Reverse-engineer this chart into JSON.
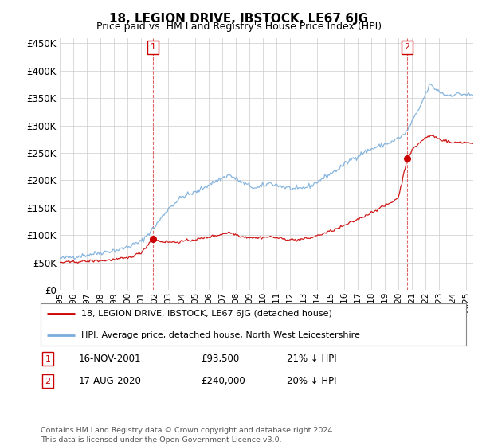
{
  "title": "18, LEGION DRIVE, IBSTOCK, LE67 6JG",
  "subtitle": "Price paid vs. HM Land Registry's House Price Index (HPI)",
  "red_label": "18, LEGION DRIVE, IBSTOCK, LE67 6JG (detached house)",
  "blue_label": "HPI: Average price, detached house, North West Leicestershire",
  "transaction1_date": "16-NOV-2001",
  "transaction1_price": "£93,500",
  "transaction1_hpi": "21% ↓ HPI",
  "transaction2_date": "17-AUG-2020",
  "transaction2_price": "£240,000",
  "transaction2_hpi": "20% ↓ HPI",
  "footer": "Contains HM Land Registry data © Crown copyright and database right 2024.\nThis data is licensed under the Open Government Licence v3.0.",
  "ylim": [
    0,
    460000
  ],
  "yticks": [
    0,
    50000,
    100000,
    150000,
    200000,
    250000,
    300000,
    350000,
    400000,
    450000
  ],
  "red_color": "#cc0000",
  "blue_color": "#7aaddb",
  "vline_color": "#cc0000",
  "grid_color": "#cccccc",
  "bg_color": "#ffffff",
  "t1_year": 2001.88,
  "t1_price": 93500,
  "t2_year": 2020.63,
  "t2_price": 240000
}
